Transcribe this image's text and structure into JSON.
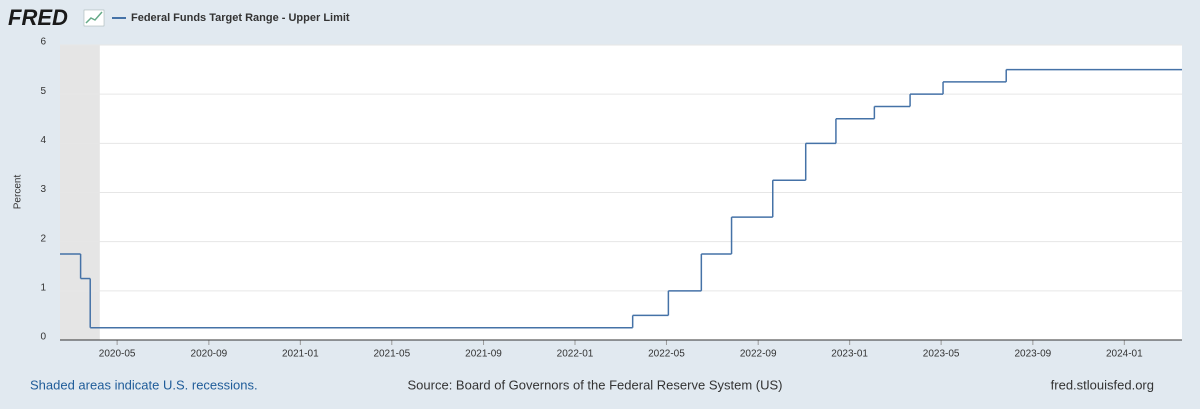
{
  "logo": "FRED",
  "chart_data": {
    "type": "step",
    "x": [
      2020.125,
      2020.2,
      2020.235,
      2022.21,
      2022.34,
      2022.46,
      2022.57,
      2022.72,
      2022.84,
      2022.95,
      2023.09,
      2023.22,
      2023.34,
      2023.57,
      2024.21
    ],
    "series": [
      {
        "name": "Federal Funds Target Range - Upper Limit",
        "color": "#4572a7",
        "values": [
          1.75,
          1.25,
          0.25,
          0.5,
          1,
          1.75,
          2.5,
          3.25,
          4,
          4.5,
          4.75,
          5,
          5.25,
          5.5,
          5.5
        ]
      }
    ],
    "recessions": [
      {
        "start": 2020.125,
        "end": 2020.27
      }
    ],
    "xlim": [
      2020.125,
      2024.21
    ],
    "xticks": [
      {
        "value": 2020.333,
        "label": "2020-05"
      },
      {
        "value": 2020.667,
        "label": "2020-09"
      },
      {
        "value": 2021,
        "label": "2021-01"
      },
      {
        "value": 2021.333,
        "label": "2021-05"
      },
      {
        "value": 2021.667,
        "label": "2021-09"
      },
      {
        "value": 2022,
        "label": "2022-01"
      },
      {
        "value": 2022.333,
        "label": "2022-05"
      },
      {
        "value": 2022.667,
        "label": "2022-09"
      },
      {
        "value": 2023,
        "label": "2023-01"
      },
      {
        "value": 2023.333,
        "label": "2023-05"
      },
      {
        "value": 2023.667,
        "label": "2023-09"
      },
      {
        "value": 2024,
        "label": "2024-01"
      }
    ],
    "ylim": [
      0,
      6
    ],
    "yticks": [
      0,
      1,
      2,
      3,
      4,
      5,
      6
    ],
    "ylabel": "Percent",
    "grid": true
  },
  "footer": {
    "note": "Shaded areas indicate U.S. recessions.",
    "source": "Source: Board of Governors of the Federal Reserve System (US)",
    "site": "fred.stlouisfed.org"
  }
}
